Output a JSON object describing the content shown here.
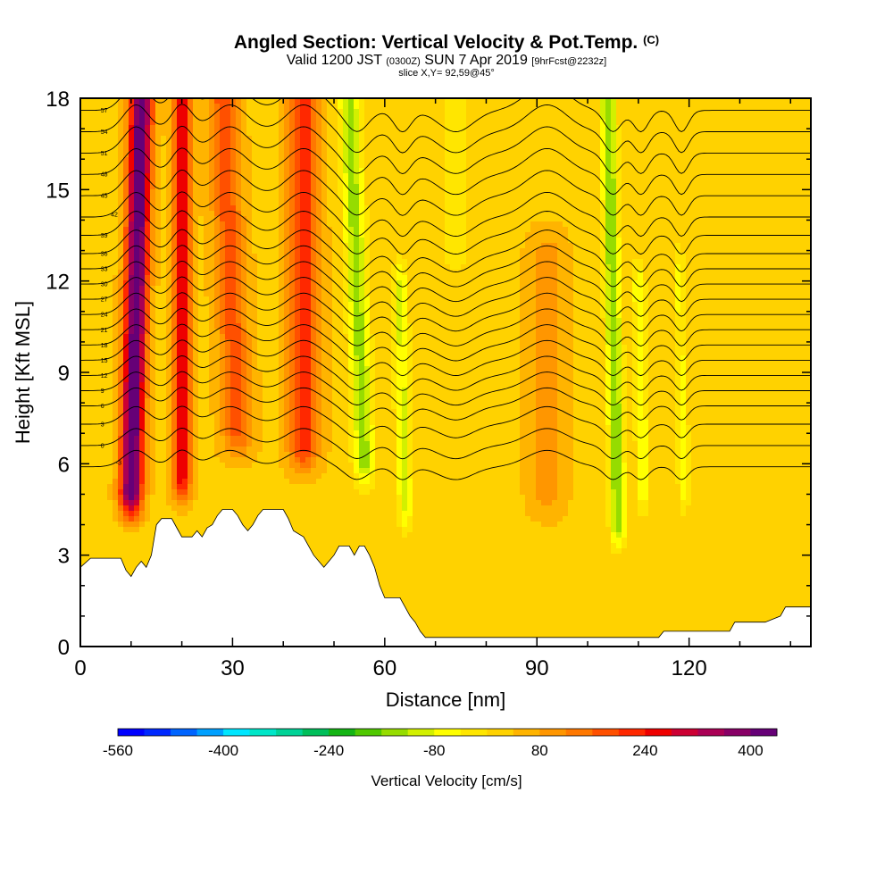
{
  "title": {
    "main": "Angled Section: Vertical Velocity & Pot.Temp.",
    "main_suffix": "(C)",
    "valid_prefix": "Valid 1200 JST",
    "valid_utc": "(0300Z)",
    "valid_date": "SUN 7 Apr 2019",
    "forecast": "[9hrFcst@2232z]",
    "slice": "slice X,Y= 92,59@45°"
  },
  "chart_data": {
    "type": "heatmap",
    "xlabel": "Distance [nm]",
    "ylabel": "Height [Kft MSL]",
    "xlim": [
      0,
      144
    ],
    "ylim": [
      0,
      18
    ],
    "x_ticks": [
      0,
      30,
      60,
      90,
      120
    ],
    "y_ticks": [
      0,
      3,
      6,
      9,
      12,
      15,
      18
    ],
    "colorbar": {
      "label": "Vertical Velocity [cm/s]",
      "min": -560,
      "max": 440,
      "step": 40,
      "tick_labels": [
        "-560",
        "-400",
        "-240",
        "-80",
        "80",
        "240",
        "400"
      ],
      "tick_values": [
        -560,
        -400,
        -240,
        -80,
        80,
        240,
        400
      ],
      "colors": [
        "#0000ff",
        "#0028ff",
        "#0064ff",
        "#00a0ff",
        "#00e6ff",
        "#00e6c8",
        "#00d296",
        "#00be5a",
        "#14b414",
        "#50c800",
        "#96dc00",
        "#d2f000",
        "#ffff00",
        "#ffe600",
        "#ffd200",
        "#ffb400",
        "#ff9600",
        "#ff7800",
        "#ff5000",
        "#ff2800",
        "#ee0000",
        "#cc0033",
        "#aa0055",
        "#880066",
        "#660077"
      ]
    },
    "background_value": 30,
    "terrain": [
      [
        0,
        2.6
      ],
      [
        2,
        2.9
      ],
      [
        8,
        2.9
      ],
      [
        9,
        2.5
      ],
      [
        10,
        2.3
      ],
      [
        11,
        2.6
      ],
      [
        12,
        2.8
      ],
      [
        13,
        2.6
      ],
      [
        14,
        3.0
      ],
      [
        15,
        4.0
      ],
      [
        16,
        4.2
      ],
      [
        18,
        4.2
      ],
      [
        19,
        3.9
      ],
      [
        20,
        3.6
      ],
      [
        22,
        3.6
      ],
      [
        23,
        3.8
      ],
      [
        24,
        3.6
      ],
      [
        25,
        3.9
      ],
      [
        26,
        4.0
      ],
      [
        27,
        4.3
      ],
      [
        28,
        4.5
      ],
      [
        30,
        4.5
      ],
      [
        31,
        4.3
      ],
      [
        32,
        4.0
      ],
      [
        33,
        3.8
      ],
      [
        34,
        4.0
      ],
      [
        35,
        4.3
      ],
      [
        36,
        4.5
      ],
      [
        40,
        4.5
      ],
      [
        41,
        4.2
      ],
      [
        42,
        3.8
      ],
      [
        44,
        3.6
      ],
      [
        45,
        3.3
      ],
      [
        46,
        3.0
      ],
      [
        47,
        2.8
      ],
      [
        48,
        2.6
      ],
      [
        49,
        2.8
      ],
      [
        50,
        3.0
      ],
      [
        51,
        3.3
      ],
      [
        53,
        3.3
      ],
      [
        54,
        3.0
      ],
      [
        55,
        3.3
      ],
      [
        56,
        3.3
      ],
      [
        57,
        3.0
      ],
      [
        58,
        2.6
      ],
      [
        59,
        2.0
      ],
      [
        60,
        1.6
      ],
      [
        63,
        1.6
      ],
      [
        64,
        1.3
      ],
      [
        65,
        1.0
      ],
      [
        66,
        0.8
      ],
      [
        67,
        0.5
      ],
      [
        68,
        0.3
      ],
      [
        71,
        0.3
      ],
      [
        80,
        0.3
      ],
      [
        95,
        0.3
      ],
      [
        114,
        0.3
      ],
      [
        115,
        0.5
      ],
      [
        120,
        0.5
      ],
      [
        128,
        0.5
      ],
      [
        129,
        0.8
      ],
      [
        135,
        0.8
      ],
      [
        138,
        1.0
      ],
      [
        139,
        1.3
      ],
      [
        144,
        1.3
      ]
    ],
    "velocity_features": [
      {
        "name": "updraft-1",
        "x_bottom": 10,
        "y_bottom": 5.0,
        "x_top": 12,
        "y_top": 18,
        "peak": 420,
        "width": 2.2
      },
      {
        "name": "updraft-2",
        "x_bottom": 20,
        "y_bottom": 5.5,
        "x_top": 20,
        "y_top": 18,
        "peak": 250,
        "width": 1.8
      },
      {
        "name": "updraft-3",
        "x_bottom": 31,
        "y_bottom": 7.0,
        "x_top": 28,
        "y_top": 18,
        "peak": 150,
        "width": 3.0
      },
      {
        "name": "updraft-4",
        "x_bottom": 44,
        "y_bottom": 6.5,
        "x_top": 44,
        "y_top": 18,
        "peak": 190,
        "width": 3.0
      },
      {
        "name": "downdraft-1",
        "x_bottom": 56,
        "y_bottom": 6.0,
        "x_top": 53,
        "y_top": 18,
        "peak": -170,
        "width": 2.0
      },
      {
        "name": "downdraft-2",
        "x_bottom": 64,
        "y_bottom": 4.5,
        "x_top": 63,
        "y_top": 12,
        "peak": -120,
        "width": 1.5
      },
      {
        "name": "downdraft-3",
        "x_bottom": 106,
        "y_bottom": 4.0,
        "x_top": 104,
        "y_top": 18,
        "peak": -190,
        "width": 1.5
      },
      {
        "name": "downdraft-4",
        "x_bottom": 111,
        "y_bottom": 5.0,
        "x_top": 110,
        "y_top": 12,
        "peak": -100,
        "width": 1.3
      },
      {
        "name": "downdraft-5",
        "x_bottom": 119,
        "y_bottom": 5.0,
        "x_top": 118,
        "y_top": 12.5,
        "peak": -80,
        "width": 1.2
      },
      {
        "name": "weak-down-1",
        "x_bottom": 74,
        "y_bottom": 13.0,
        "x_top": 74,
        "y_top": 18,
        "peak": -60,
        "width": 3.0
      },
      {
        "name": "weak-up-1",
        "x_bottom": 92,
        "y_bottom": 5.0,
        "x_top": 92,
        "y_top": 13,
        "peak": 70,
        "width": 3.5
      }
    ],
    "isentropes": [
      {
        "label": "-3",
        "y": 5.9,
        "label_x": 3
      },
      {
        "label": "0",
        "y": 6.6,
        "label_x": 0
      },
      {
        "label": "3",
        "y": 7.3,
        "label_x": 0
      },
      {
        "label": "6",
        "y": 7.9,
        "label_x": 0
      },
      {
        "label": "9",
        "y": 8.4,
        "label_x": 0
      },
      {
        "label": "12",
        "y": 8.9,
        "label_x": 0
      },
      {
        "label": "15",
        "y": 9.4,
        "label_x": 0
      },
      {
        "label": "18",
        "y": 9.9,
        "label_x": 0
      },
      {
        "label": "21",
        "y": 10.4,
        "label_x": 0
      },
      {
        "label": "24",
        "y": 10.9,
        "label_x": 0
      },
      {
        "label": "27",
        "y": 11.4,
        "label_x": 0
      },
      {
        "label": "30",
        "y": 11.9,
        "label_x": 0
      },
      {
        "label": "33",
        "y": 12.4,
        "label_x": 0
      },
      {
        "label": "36",
        "y": 12.9,
        "label_x": 0
      },
      {
        "label": "39",
        "y": 13.5,
        "label_x": 0
      },
      {
        "label": "42",
        "y": 14.1,
        "label_x": 2
      },
      {
        "label": "45",
        "y": 14.8,
        "label_x": 0
      },
      {
        "label": "48",
        "y": 15.5,
        "label_x": 0
      },
      {
        "label": "51",
        "y": 16.2,
        "label_x": 0
      },
      {
        "label": "54",
        "y": 16.9,
        "label_x": 0
      },
      {
        "label": "57",
        "y": 17.6,
        "label_x": 0
      }
    ]
  }
}
